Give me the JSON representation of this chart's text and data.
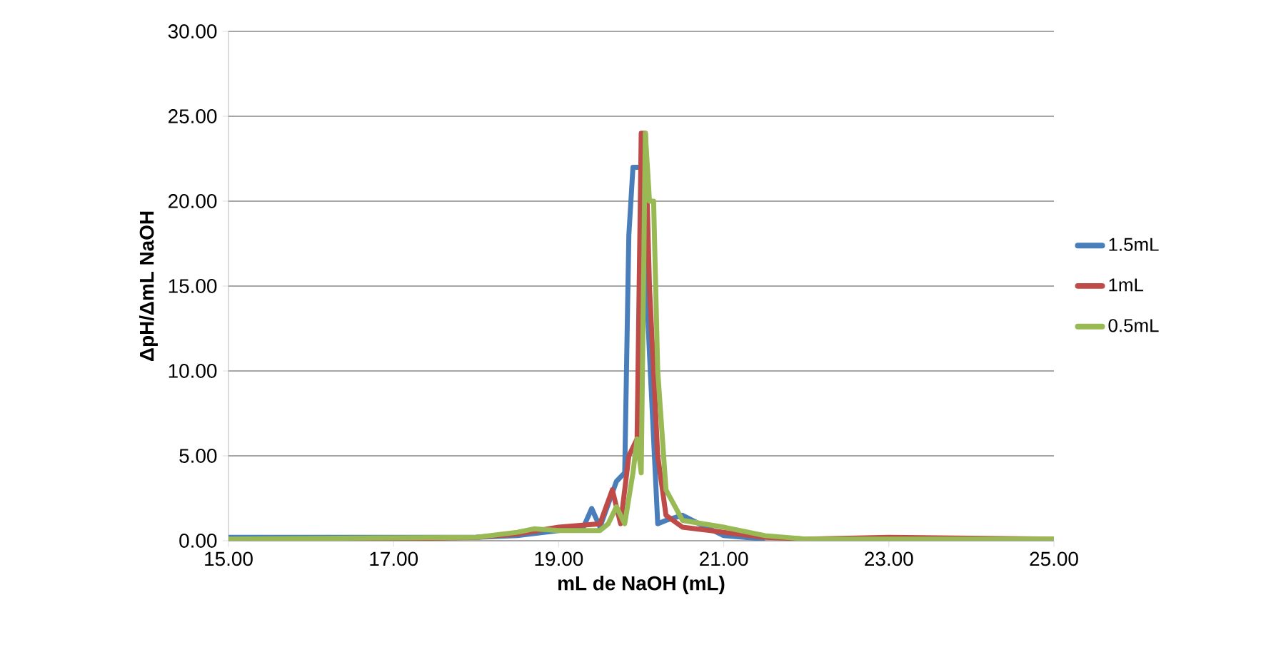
{
  "chart_data": {
    "type": "line",
    "xlabel": "mL de NaOH (mL)",
    "ylabel": "ΔpH/ΔmL  NaOH",
    "xlim": [
      15,
      25
    ],
    "ylim": [
      0,
      30
    ],
    "xticks": [
      {
        "value": 15,
        "label": "15.00"
      },
      {
        "value": 17,
        "label": "17.00"
      },
      {
        "value": 19,
        "label": "19.00"
      },
      {
        "value": 21,
        "label": "21.00"
      },
      {
        "value": 23,
        "label": "23.00"
      },
      {
        "value": 25,
        "label": "25.00"
      }
    ],
    "yticks": [
      {
        "value": 0,
        "label": "0.00"
      },
      {
        "value": 5,
        "label": "5.00"
      },
      {
        "value": 10,
        "label": "10.00"
      },
      {
        "value": 15,
        "label": "15.00"
      },
      {
        "value": 20,
        "label": "20.00"
      },
      {
        "value": 25,
        "label": "25.00"
      },
      {
        "value": 30,
        "label": "30.00"
      }
    ],
    "grid": "y",
    "legend": "right",
    "marker": "none",
    "line_style": "solid",
    "series": [
      {
        "name": "1.5mL",
        "color": "#4a7ebb",
        "x": [
          15,
          18,
          18.5,
          19,
          19.3,
          19.4,
          19.5,
          19.7,
          19.8,
          19.85,
          19.9,
          20.0,
          20.1,
          20.2,
          20.3,
          20.5,
          20.7,
          21,
          21.5
        ],
        "values": [
          0.2,
          0.2,
          0.3,
          0.6,
          0.8,
          1.9,
          0.8,
          3.5,
          4,
          18,
          22,
          22,
          11,
          1,
          1.2,
          1.5,
          1,
          0.3,
          0.1
        ]
      },
      {
        "name": "1mL",
        "color": "#be4b48",
        "x": [
          15,
          17,
          18,
          18.5,
          19,
          19.5,
          19.65,
          19.75,
          19.85,
          19.95,
          20.0,
          20.05,
          20.1,
          20.2,
          20.3,
          20.5,
          21,
          21.5,
          22,
          23,
          25
        ],
        "values": [
          0,
          0.1,
          0.2,
          0.4,
          0.8,
          1,
          3,
          1,
          5,
          6,
          24,
          24,
          15,
          5,
          1.5,
          0.8,
          0.5,
          0.2,
          0.1,
          0.2,
          0.1
        ]
      },
      {
        "name": "0.5mL",
        "color": "#98b954",
        "x": [
          15,
          18,
          18.5,
          18.7,
          19,
          19.5,
          19.6,
          19.7,
          19.8,
          19.9,
          19.95,
          20.0,
          20.05,
          20.1,
          20.15,
          20.2,
          20.3,
          20.5,
          21,
          21.5,
          22,
          25
        ],
        "values": [
          0.1,
          0.2,
          0.5,
          0.7,
          0.6,
          0.6,
          1,
          2,
          1,
          4,
          6,
          4,
          24,
          20,
          20,
          10,
          3,
          1.2,
          0.8,
          0.3,
          0.1,
          0.1
        ]
      }
    ]
  }
}
